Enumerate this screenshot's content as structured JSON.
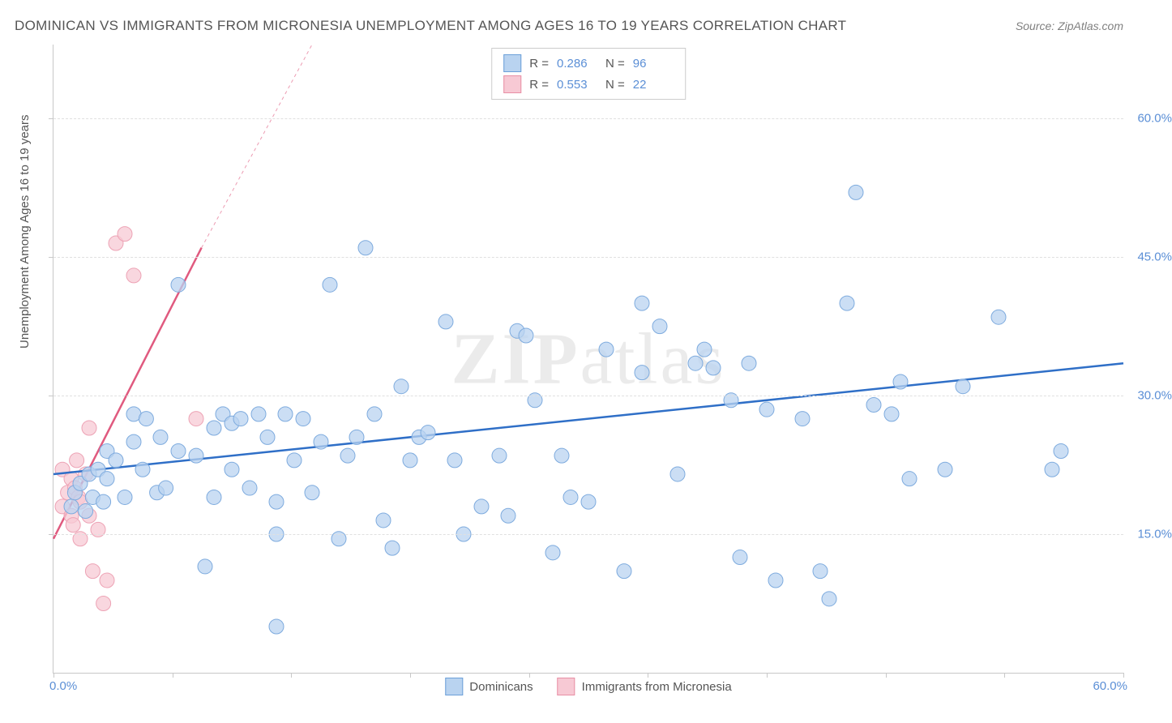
{
  "title": "DOMINICAN VS IMMIGRANTS FROM MICRONESIA UNEMPLOYMENT AMONG AGES 16 TO 19 YEARS CORRELATION CHART",
  "source": "Source: ZipAtlas.com",
  "ylabel": "Unemployment Among Ages 16 to 19 years",
  "watermark_a": "ZIP",
  "watermark_b": "atlas",
  "xlim": [
    0,
    60
  ],
  "ylim": [
    0,
    68
  ],
  "y_ticks": [
    15,
    30,
    45,
    60
  ],
  "y_tick_labels": [
    "15.0%",
    "30.0%",
    "45.0%",
    "60.0%"
  ],
  "x_minor_ticks": [
    0,
    6.67,
    13.33,
    20,
    26.67,
    33.33,
    40,
    46.67,
    53.33,
    60
  ],
  "x_tick_min": "0.0%",
  "x_tick_max": "60.0%",
  "series1": {
    "label": "Dominicans",
    "color_fill": "#b9d3f0",
    "color_stroke": "#7eabde",
    "swatch_fill": "#b9d3f0",
    "swatch_border": "#6b9fd8",
    "marker_radius": 9,
    "marker_opacity": 0.75,
    "line_color": "#2f6fc7",
    "line_width": 2.5,
    "line_p1": [
      0,
      21.5
    ],
    "line_p2": [
      60,
      33.5
    ],
    "R_label": "R =",
    "R": "0.286",
    "N_label": "N =",
    "N": "96",
    "points": [
      [
        1.0,
        18.0
      ],
      [
        1.2,
        19.5
      ],
      [
        1.5,
        20.5
      ],
      [
        1.8,
        17.5
      ],
      [
        2.0,
        21.5
      ],
      [
        2.2,
        19.0
      ],
      [
        2.5,
        22.0
      ],
      [
        2.8,
        18.5
      ],
      [
        3.0,
        24.0
      ],
      [
        3.0,
        21.0
      ],
      [
        3.5,
        23.0
      ],
      [
        4.0,
        19.0
      ],
      [
        4.5,
        25.0
      ],
      [
        4.5,
        28.0
      ],
      [
        5.0,
        22.0
      ],
      [
        5.2,
        27.5
      ],
      [
        5.8,
        19.5
      ],
      [
        6.0,
        25.5
      ],
      [
        6.3,
        20.0
      ],
      [
        7.0,
        24.0
      ],
      [
        7.0,
        42.0
      ],
      [
        8.0,
        23.5
      ],
      [
        8.5,
        11.5
      ],
      [
        9.0,
        26.5
      ],
      [
        9.0,
        19.0
      ],
      [
        9.5,
        28.0
      ],
      [
        10.0,
        27.0
      ],
      [
        10.0,
        22.0
      ],
      [
        10.5,
        27.5
      ],
      [
        11.0,
        20.0
      ],
      [
        11.5,
        28.0
      ],
      [
        12.0,
        25.5
      ],
      [
        12.5,
        18.5
      ],
      [
        12.5,
        15.0
      ],
      [
        12.5,
        5.0
      ],
      [
        13.0,
        28.0
      ],
      [
        13.5,
        23.0
      ],
      [
        14.0,
        27.5
      ],
      [
        14.5,
        19.5
      ],
      [
        15.0,
        25.0
      ],
      [
        15.5,
        42.0
      ],
      [
        16.0,
        14.5
      ],
      [
        16.5,
        23.5
      ],
      [
        17.0,
        25.5
      ],
      [
        17.5,
        46.0
      ],
      [
        18.0,
        28.0
      ],
      [
        18.5,
        16.5
      ],
      [
        19.0,
        13.5
      ],
      [
        19.5,
        31.0
      ],
      [
        20.0,
        23.0
      ],
      [
        20.5,
        25.5
      ],
      [
        21.0,
        26.0
      ],
      [
        22.0,
        38.0
      ],
      [
        22.5,
        23.0
      ],
      [
        23.0,
        15.0
      ],
      [
        24.0,
        18.0
      ],
      [
        25.0,
        23.5
      ],
      [
        25.5,
        17.0
      ],
      [
        26.0,
        37.0
      ],
      [
        26.5,
        36.5
      ],
      [
        27.0,
        29.5
      ],
      [
        28.0,
        13.0
      ],
      [
        28.5,
        23.5
      ],
      [
        29.0,
        19.0
      ],
      [
        30.0,
        18.5
      ],
      [
        31.0,
        35.0
      ],
      [
        32.0,
        11.0
      ],
      [
        33.0,
        40.0
      ],
      [
        33.0,
        32.5
      ],
      [
        34.0,
        37.5
      ],
      [
        35.0,
        21.5
      ],
      [
        36.0,
        33.5
      ],
      [
        36.5,
        35.0
      ],
      [
        37.0,
        33.0
      ],
      [
        38.0,
        29.5
      ],
      [
        38.5,
        12.5
      ],
      [
        39.0,
        33.5
      ],
      [
        40.0,
        28.5
      ],
      [
        40.5,
        10.0
      ],
      [
        42.0,
        27.5
      ],
      [
        43.0,
        11.0
      ],
      [
        43.5,
        8.0
      ],
      [
        44.5,
        40.0
      ],
      [
        45.0,
        52.0
      ],
      [
        46.0,
        29.0
      ],
      [
        47.0,
        28.0
      ],
      [
        47.5,
        31.5
      ],
      [
        48.0,
        21.0
      ],
      [
        50.0,
        22.0
      ],
      [
        51.0,
        31.0
      ],
      [
        53.0,
        38.5
      ],
      [
        56.5,
        24.0
      ],
      [
        56.0,
        22.0
      ]
    ]
  },
  "series2": {
    "label": "Immigrants from Micronesia",
    "color_fill": "#f7c9d4",
    "color_stroke": "#eda3b5",
    "swatch_fill": "#f7c9d4",
    "swatch_border": "#e88fa5",
    "marker_radius": 9,
    "marker_opacity": 0.75,
    "line_color": "#e05a7f",
    "line_width": 2.5,
    "line_p1": [
      0,
      14.5
    ],
    "line_p2": [
      8.3,
      46.0
    ],
    "line_dash_p2": [
      14.5,
      68.0
    ],
    "R_label": "R =",
    "R": "0.553",
    "N_label": "N =",
    "N": "22",
    "points": [
      [
        0.5,
        18.0
      ],
      [
        0.5,
        22.0
      ],
      [
        0.8,
        19.5
      ],
      [
        1.0,
        21.0
      ],
      [
        1.0,
        17.0
      ],
      [
        1.1,
        16.0
      ],
      [
        1.2,
        20.0
      ],
      [
        1.3,
        23.0
      ],
      [
        1.4,
        19.0
      ],
      [
        1.5,
        18.5
      ],
      [
        1.5,
        14.5
      ],
      [
        1.8,
        21.5
      ],
      [
        2.0,
        26.5
      ],
      [
        2.0,
        17.0
      ],
      [
        2.2,
        11.0
      ],
      [
        2.5,
        15.5
      ],
      [
        2.8,
        7.5
      ],
      [
        3.0,
        10.0
      ],
      [
        3.5,
        46.5
      ],
      [
        4.0,
        47.5
      ],
      [
        4.5,
        43.0
      ],
      [
        8.0,
        27.5
      ]
    ]
  },
  "background_color": "#ffffff",
  "grid_color": "#e0e0e0",
  "axis_text_color": "#5b8fd6",
  "label_text_color": "#555555"
}
